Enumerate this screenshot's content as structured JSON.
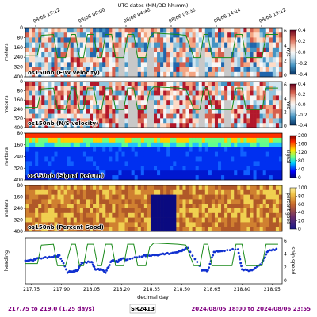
{
  "chart_data": {
    "type": "heatmap",
    "top_axis": {
      "label": "UTC dates (MM/DD hh:mm)",
      "ticks": [
        "08/05 19:12",
        "08/06 00:00",
        "08/06 04:48",
        "08/06 09:36",
        "08/06 14:24",
        "08/06 19:12"
      ]
    },
    "x_axis": {
      "label": "decimal day",
      "range": [
        217.72,
        219.0
      ],
      "ticks": [
        "217.75",
        "217.90",
        "218.05",
        "218.20",
        "218.35",
        "218.50",
        "218.65",
        "218.80",
        "218.95"
      ]
    },
    "panels": [
      {
        "title": "os150nb (E/W velocity)",
        "ylabel": "meters",
        "yticks": [
          "0",
          "80",
          "160",
          "240",
          "320",
          "400"
        ],
        "colorbar": {
          "label": "m/s",
          "ticks": [
            "0.4",
            "0.2",
            "0.0",
            "-0.2",
            "-0.4"
          ],
          "range": [
            -0.4,
            0.4
          ]
        },
        "right_axis": {
          "label": "speed",
          "ticks": [
            "0",
            "2",
            "4",
            "6"
          ]
        }
      },
      {
        "title": "os150nb (N/S velocity)",
        "ylabel": "meters",
        "yticks": [
          "0",
          "80",
          "160",
          "240",
          "320",
          "400"
        ],
        "colorbar": {
          "label": "m/s",
          "ticks": [
            "0.4",
            "0.2",
            "0.0",
            "-0.2",
            "-0.4"
          ],
          "range": [
            -0.4,
            0.4
          ]
        },
        "right_axis": {
          "label": "speed",
          "ticks": [
            "0",
            "2",
            "4",
            "6"
          ]
        }
      },
      {
        "title": "os150nb (Signal Return)",
        "ylabel": "meters",
        "yticks": [
          "80",
          "160",
          "240",
          "320",
          "400"
        ],
        "colorbar": {
          "label": "signal",
          "ticks": [
            "200",
            "160",
            "120",
            "80",
            "40",
            "0"
          ],
          "range": [
            0,
            200
          ]
        }
      },
      {
        "title": "os150nb (Percent Good)",
        "ylabel": "meters",
        "yticks": [
          "80",
          "160",
          "240",
          "320",
          "400"
        ],
        "colorbar": {
          "label": "percent good",
          "ticks": [
            "100",
            "80",
            "60",
            "40",
            "20",
            "0"
          ],
          "range": [
            0,
            100
          ]
        }
      }
    ],
    "bottom_panel": {
      "left_label": "heading",
      "right_label": "ship speed",
      "right_ticks": [
        "6",
        "4",
        "2",
        "0"
      ],
      "heading_series": [
        [
          217.72,
          0.5
        ],
        [
          217.76,
          0.52
        ],
        [
          217.79,
          0.55
        ],
        [
          217.85,
          0.58
        ],
        [
          217.88,
          0.6
        ],
        [
          217.89,
          0.62
        ],
        [
          217.93,
          0.25
        ],
        [
          217.96,
          0.27
        ],
        [
          217.98,
          0.28
        ],
        [
          218.0,
          0.45
        ],
        [
          218.05,
          0.48
        ],
        [
          218.07,
          0.3
        ],
        [
          218.1,
          0.32
        ],
        [
          218.12,
          0.25
        ],
        [
          218.15,
          0.5
        ],
        [
          218.18,
          0.48
        ],
        [
          218.2,
          0.55
        ],
        [
          218.23,
          0.52
        ],
        [
          218.3,
          0.6
        ],
        [
          218.33,
          0.62
        ],
        [
          218.38,
          0.62
        ],
        [
          218.42,
          0.65
        ],
        [
          218.47,
          0.68
        ],
        [
          218.5,
          0.72
        ],
        [
          218.53,
          0.78
        ],
        [
          218.6,
          0.3
        ],
        [
          218.63,
          0.28
        ],
        [
          218.66,
          0.7
        ],
        [
          218.7,
          0.72
        ],
        [
          218.78,
          0.75
        ],
        [
          218.8,
          0.3
        ],
        [
          218.85,
          0.28
        ],
        [
          218.9,
          0.45
        ],
        [
          218.93,
          0.72
        ],
        [
          218.98,
          0.75
        ]
      ],
      "speed_series": [
        [
          217.72,
          0.45
        ],
        [
          217.78,
          0.45
        ],
        [
          217.8,
          0.9
        ],
        [
          217.86,
          0.92
        ],
        [
          217.88,
          0.4
        ],
        [
          217.92,
          0.4
        ],
        [
          217.95,
          0.92
        ],
        [
          217.97,
          0.92
        ],
        [
          217.99,
          0.4
        ],
        [
          218.01,
          0.4
        ],
        [
          218.03,
          0.92
        ],
        [
          218.06,
          0.92
        ],
        [
          218.08,
          0.4
        ],
        [
          218.1,
          0.4
        ],
        [
          218.12,
          0.92
        ],
        [
          218.15,
          0.92
        ],
        [
          218.17,
          0.4
        ],
        [
          218.21,
          0.4
        ],
        [
          218.23,
          0.92
        ],
        [
          218.26,
          0.92
        ],
        [
          218.28,
          0.4
        ],
        [
          218.32,
          0.4
        ],
        [
          218.34,
          0.85
        ],
        [
          218.36,
          0.95
        ],
        [
          218.48,
          0.92
        ],
        [
          218.52,
          0.9
        ],
        [
          218.56,
          0.4
        ],
        [
          218.59,
          0.4
        ],
        [
          218.61,
          0.92
        ],
        [
          218.63,
          0.92
        ],
        [
          218.65,
          0.4
        ],
        [
          218.75,
          0.4
        ],
        [
          218.77,
          0.92
        ],
        [
          218.8,
          0.92
        ],
        [
          218.82,
          0.4
        ],
        [
          218.9,
          0.4
        ],
        [
          218.92,
          0.92
        ],
        [
          218.98,
          0.92
        ]
      ]
    },
    "footer": {
      "left": "217.75 to 219.0 (1.25 days)",
      "center": "SR2413",
      "right": "2024/08/05 18:00 to 2024/08/06 23:55"
    }
  }
}
